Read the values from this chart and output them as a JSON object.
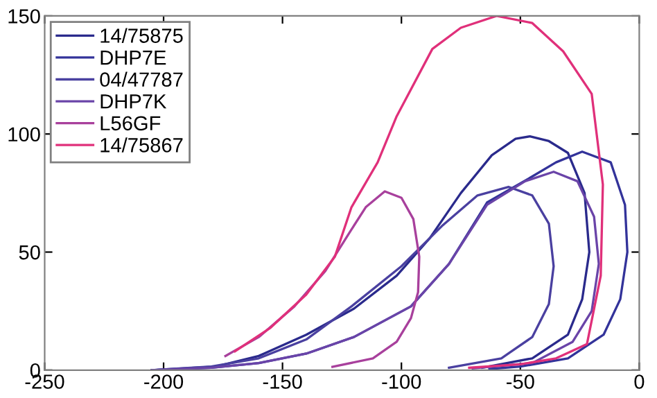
{
  "chart_data": {
    "type": "line",
    "xlim": [
      -250,
      0
    ],
    "ylim": [
      0,
      150
    ],
    "xticks": [
      -250,
      -200,
      -150,
      -100,
      -50,
      0
    ],
    "yticks": [
      0,
      50,
      100,
      150
    ],
    "grid": false,
    "legend": "top left",
    "marker": "none",
    "line_style": "solid",
    "series": [
      {
        "name": "14/75875",
        "color": "#2a2a8c",
        "x": [
          -205,
          -178,
          -160,
          -140,
          -120,
          -102,
          -88,
          -75,
          -62,
          -52,
          -46,
          -38,
          -30,
          -23,
          -21,
          -24,
          -30,
          -45,
          -66
        ],
        "values": [
          0,
          1.5,
          6,
          15,
          26,
          40,
          56,
          75,
          91,
          98,
          99,
          97,
          92,
          75,
          50,
          30,
          15,
          5,
          1
        ]
      },
      {
        "name": "DHP7E",
        "color": "#33339a",
        "x": [
          -205,
          -180,
          -160,
          -140,
          -120,
          -96,
          -80,
          -64,
          -45,
          -35,
          -24,
          -12,
          -6,
          -5,
          -8,
          -15,
          -30,
          -50,
          -63
        ],
        "values": [
          0,
          1,
          3,
          7,
          14,
          27,
          45,
          71,
          82,
          88,
          92.5,
          88,
          70,
          50,
          30,
          15,
          5,
          1.5,
          0.5
        ]
      },
      {
        "name": "04/47787",
        "color": "#4a40a0",
        "x": [
          -205,
          -180,
          -160,
          -140,
          -121,
          -100,
          -83,
          -68,
          -55,
          -45,
          -38,
          -36,
          -38,
          -45,
          -58,
          -80
        ],
        "values": [
          0,
          1.5,
          5,
          13,
          27,
          44,
          61,
          74,
          77.6,
          74,
          62,
          44,
          28,
          14,
          5,
          1
        ]
      },
      {
        "name": "DHP7K",
        "color": "#6a44a8",
        "x": [
          -205,
          -180,
          -160,
          -140,
          -120,
          -96,
          -80,
          -64,
          -48,
          -36,
          -26,
          -19,
          -17,
          -20,
          -28,
          -45,
          -70
        ],
        "values": [
          0,
          1,
          3,
          7,
          14,
          27,
          45,
          70,
          80,
          84,
          80,
          65,
          45,
          25,
          12,
          3,
          0.8
        ]
      },
      {
        "name": "L56GF",
        "color": "#a8409c",
        "x": [
          -174,
          -160,
          -145,
          -132,
          -122,
          -115,
          -107,
          -100,
          -95,
          -92.5,
          -93,
          -96,
          -102,
          -112,
          -129
        ],
        "values": [
          6,
          14,
          27,
          42,
          58,
          69,
          75.7,
          73,
          64,
          48,
          33,
          22,
          12,
          5,
          1.4
        ]
      },
      {
        "name": "14/75867",
        "color": "#e0307a",
        "x": [
          -170,
          -155,
          -140,
          -128,
          -121,
          -110,
          -102,
          -87,
          -75,
          -60,
          -45,
          -32,
          -20,
          -15.3,
          -16.2,
          -22,
          -35,
          -50,
          -71.5
        ],
        "values": [
          8,
          18,
          32,
          48,
          69,
          88,
          107.5,
          136,
          145,
          150,
          147,
          135,
          117,
          78.6,
          40,
          11,
          5,
          2.5,
          1
        ]
      }
    ]
  }
}
